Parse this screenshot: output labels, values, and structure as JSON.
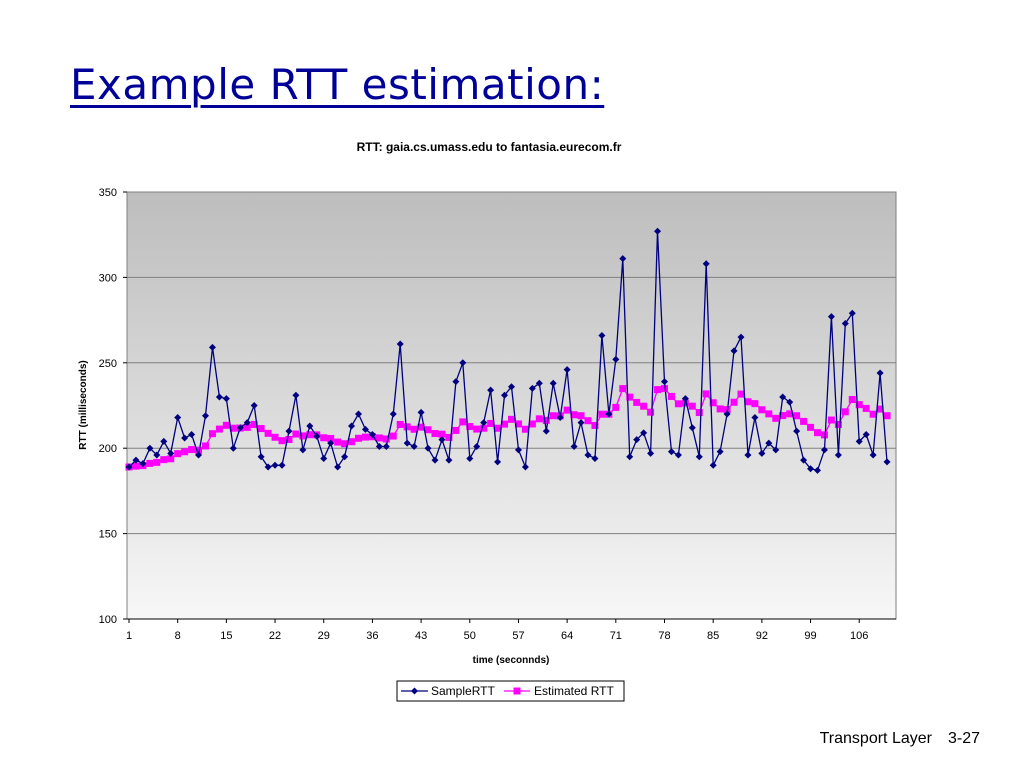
{
  "slide": {
    "title": "Example RTT estimation:",
    "footer_section": "Transport Layer",
    "footer_page": "3-27"
  },
  "colors": {
    "title": "#000099",
    "sample": "#000080",
    "estimated": "#ff00ff",
    "grid": "#808080"
  },
  "chart_data": {
    "type": "line",
    "title": "RTT: gaia.cs.umass.edu to fantasia.eurecom.fr",
    "xlabel": "time (seconnds)",
    "ylabel": "RTT (milliseconds)",
    "ylim": [
      100,
      350
    ],
    "yticks": [
      100,
      150,
      200,
      250,
      300,
      350
    ],
    "xlim": [
      1,
      111
    ],
    "xticks": [
      1,
      8,
      15,
      22,
      29,
      36,
      43,
      50,
      57,
      64,
      71,
      78,
      85,
      92,
      99,
      106
    ],
    "grid": true,
    "legend_position": "bottom",
    "series": [
      {
        "name": "SampleRTT",
        "marker": "diamond",
        "values": [
          189,
          193,
          191,
          200,
          196,
          204,
          197,
          218,
          206,
          208,
          196,
          219,
          259,
          230,
          229,
          200,
          212,
          215,
          225,
          195,
          189,
          190,
          190,
          210,
          231,
          199,
          213,
          207,
          194,
          203,
          189,
          195,
          213,
          220,
          211,
          208,
          201,
          201,
          220,
          261,
          203,
          201,
          221,
          200,
          193,
          205,
          193,
          239,
          250,
          194,
          201,
          215,
          234,
          192,
          231,
          236,
          199,
          189,
          235,
          238,
          210,
          238,
          218,
          246,
          201,
          215,
          196,
          194,
          266,
          220,
          252,
          311,
          195,
          205,
          209,
          197,
          327,
          239,
          198,
          196,
          229,
          212,
          195,
          308,
          190,
          198,
          220,
          257,
          265,
          196,
          218,
          197,
          203,
          199,
          230,
          227,
          210,
          193,
          188,
          187,
          199,
          277,
          196,
          273,
          279,
          204,
          208,
          196,
          244,
          192
        ]
      },
      {
        "name": "Estimated RTT",
        "marker": "square",
        "values": [
          189,
          189.5,
          189.8,
          191.1,
          191.7,
          193.3,
          193.8,
          196.8,
          197.9,
          199.2,
          198.8,
          201.3,
          208.5,
          211.2,
          213.4,
          211.7,
          211.8,
          212.2,
          213.9,
          211.5,
          208.7,
          206.4,
          204.4,
          205.1,
          208.3,
          207.2,
          207.9,
          207.8,
          206.1,
          205.7,
          203.6,
          202.6,
          203.8,
          205.8,
          206.5,
          206.7,
          206.0,
          205.4,
          207.1,
          213.9,
          212.5,
          211.1,
          212.3,
          210.8,
          208.6,
          208.2,
          206.3,
          210.4,
          215.4,
          212.7,
          211.2,
          211.7,
          214.5,
          211.7,
          214.1,
          216.9,
          214.2,
          211.1,
          214.2,
          217.2,
          216.3,
          219.0,
          218.9,
          222.3,
          219.6,
          219.0,
          216.1,
          213.3,
          219.9,
          219.9,
          223.9,
          234.9,
          229.9,
          226.8,
          224.6,
          221.1,
          234.3,
          234.9,
          230.3,
          226.0,
          226.4,
          224.6,
          220.9,
          231.8,
          226.6,
          223.0,
          222.6,
          226.9,
          231.7,
          227.2,
          226.1,
          222.5,
          220.1,
          217.5,
          219.1,
          220.1,
          219.0,
          215.7,
          212.2,
          209.1,
          207.8,
          216.5,
          213.9,
          221.3,
          228.5,
          225.5,
          223.3,
          219.9,
          222.9,
          219.0
        ]
      }
    ]
  }
}
